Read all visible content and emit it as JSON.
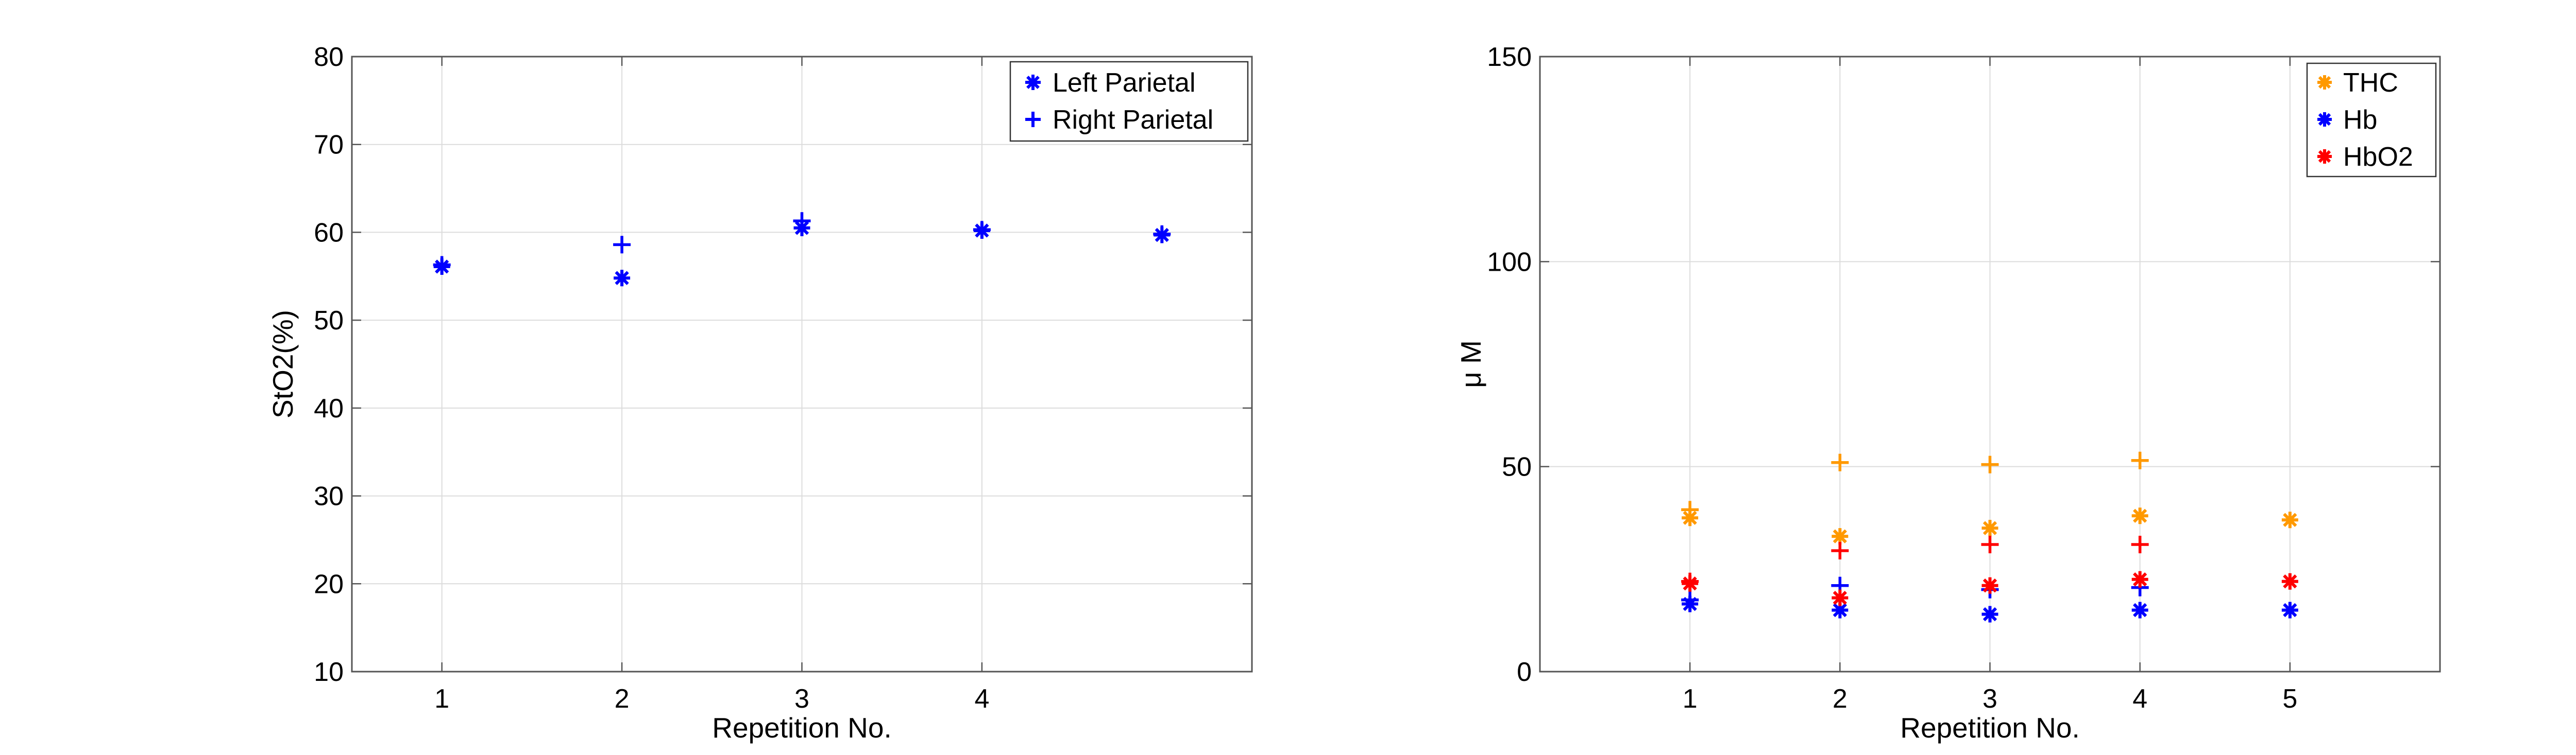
{
  "chart_data": [
    {
      "type": "scatter",
      "xlabel": "Repetition No.",
      "ylabel": "StO2(%)",
      "xlim": [
        0.5,
        5.5
      ],
      "ylim": [
        10,
        80
      ],
      "xticks": [
        1,
        2,
        3,
        4
      ],
      "yticks": [
        10,
        20,
        30,
        40,
        50,
        60,
        70,
        80
      ],
      "grid": true,
      "legend_position": "top-right",
      "series": [
        {
          "name": "Left Parietal",
          "marker": "asterisk",
          "color": "#0000ff",
          "x": [
            1,
            2,
            3,
            4,
            5
          ],
          "y": [
            56.1,
            54.8,
            60.5,
            60.2,
            59.7
          ]
        },
        {
          "name": "Right Parietal",
          "marker": "plus",
          "color": "#0000ff",
          "x": [
            1,
            2,
            3,
            4,
            5
          ],
          "y": [
            56.3,
            58.6,
            61.3,
            60.3,
            59.8
          ]
        }
      ]
    },
    {
      "type": "scatter",
      "xlabel": "Repetition No.",
      "ylabel": "μ M",
      "xlim": [
        0,
        6
      ],
      "ylim": [
        0,
        150
      ],
      "xticks": [
        1,
        2,
        3,
        4,
        5
      ],
      "yticks": [
        0,
        50,
        100,
        150
      ],
      "grid": true,
      "legend_position": "top-right",
      "legend": [
        {
          "name": "THC",
          "color": "#ff9900"
        },
        {
          "name": "Hb",
          "color": "#0000ff"
        },
        {
          "name": "HbO2",
          "color": "#ff0000"
        }
      ],
      "series": [
        {
          "name": "THC",
          "marker": "asterisk",
          "color": "#ff9900",
          "x": [
            1,
            2,
            3,
            4,
            5
          ],
          "y": [
            37.5,
            33,
            35,
            38,
            37
          ]
        },
        {
          "name": "",
          "marker": "plus",
          "color": "#ff9900",
          "x": [
            1,
            2,
            3,
            4
          ],
          "y": [
            39.5,
            51,
            50.5,
            51.5
          ]
        },
        {
          "name": "Hb",
          "marker": "asterisk",
          "color": "#0000ff",
          "x": [
            1,
            2,
            3,
            4,
            5
          ],
          "y": [
            16.5,
            15,
            14,
            15,
            15
          ]
        },
        {
          "name": "",
          "marker": "plus",
          "color": "#0000ff",
          "x": [
            1,
            2,
            3,
            4
          ],
          "y": [
            17.5,
            21,
            20,
            20.5
          ]
        },
        {
          "name": "HbO2",
          "marker": "asterisk",
          "color": "#ff0000",
          "x": [
            1,
            2,
            3,
            4,
            5
          ],
          "y": [
            21.5,
            18,
            21,
            22.5,
            22
          ]
        },
        {
          "name": "",
          "marker": "plus",
          "color": "#ff0000",
          "x": [
            1,
            2,
            3,
            4
          ],
          "y": [
            22,
            29.5,
            31,
            31
          ]
        }
      ]
    }
  ]
}
